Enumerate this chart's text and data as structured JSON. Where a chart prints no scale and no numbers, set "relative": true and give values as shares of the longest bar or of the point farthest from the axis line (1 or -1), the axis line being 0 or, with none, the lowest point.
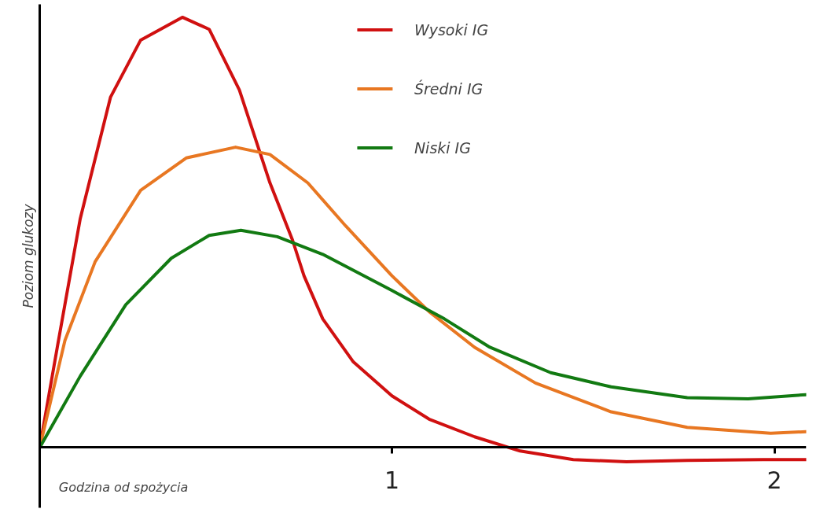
{
  "chart_data": {
    "type": "line",
    "relative": true,
    "xlabel": "Godzina od spożycia",
    "ylabel": "Poziom glukozy",
    "xlim": [
      0.079,
      2.083
    ],
    "xticks": [
      1,
      2
    ],
    "legend": "top",
    "grid": false,
    "marker": "none",
    "line_style": "solid",
    "series": [
      {
        "name": "Wysoki IG",
        "color": "#d01010",
        "x": [
          0.079,
          0.125,
          0.185,
          0.264,
          0.343,
          0.452,
          0.522,
          0.601,
          0.681,
          0.74,
          0.77,
          0.819,
          0.899,
          1,
          1.097,
          1.216,
          1.335,
          1.474,
          1.613,
          1.772,
          1.97,
          2.083
        ],
        "values": [
          0,
          0.233,
          0.532,
          0.814,
          0.947,
          1,
          0.972,
          0.831,
          0.615,
          0.482,
          0.399,
          0.299,
          0.199,
          0.12,
          0.066,
          0.025,
          -0.008,
          -0.028,
          -0.033,
          -0.03,
          -0.028,
          -0.028
        ]
      },
      {
        "name": "Średni IG",
        "color": "#e87722",
        "x": [
          0.079,
          0.145,
          0.224,
          0.343,
          0.462,
          0.591,
          0.681,
          0.78,
          0.879,
          1,
          1.097,
          1.216,
          1.375,
          1.573,
          1.772,
          1.99,
          2.083
        ],
        "values": [
          0,
          0.249,
          0.432,
          0.598,
          0.673,
          0.698,
          0.681,
          0.615,
          0.515,
          0.399,
          0.316,
          0.233,
          0.15,
          0.083,
          0.047,
          0.033,
          0.037
        ]
      },
      {
        "name": "Niski IG",
        "color": "#127a12",
        "x": [
          0.079,
          0.185,
          0.304,
          0.423,
          0.522,
          0.605,
          0.7,
          0.819,
          1,
          1.137,
          1.256,
          1.415,
          1.573,
          1.772,
          1.931,
          2.083
        ],
        "values": [
          0,
          0.166,
          0.332,
          0.44,
          0.493,
          0.505,
          0.49,
          0.449,
          0.365,
          0.299,
          0.233,
          0.174,
          0.141,
          0.116,
          0.113,
          0.123
        ]
      }
    ]
  }
}
